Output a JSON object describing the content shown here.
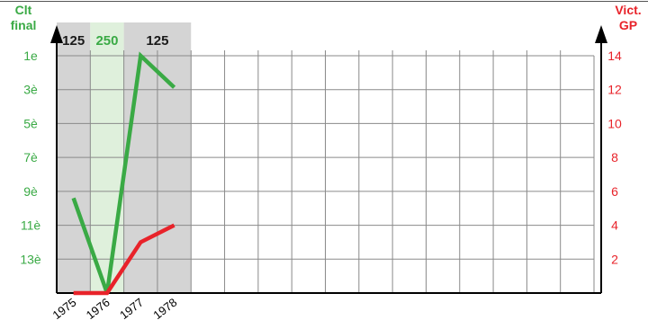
{
  "chart_data": {
    "type": "line",
    "left_axis_title": [
      "Clt",
      "final"
    ],
    "right_axis_title": [
      "Vict.",
      "GP"
    ],
    "left_ticks": [
      "1e",
      "3è",
      "5è",
      "7è",
      "9è",
      "11è",
      "13è"
    ],
    "right_ticks": [
      "14",
      "12",
      "10",
      "8",
      "6",
      "4",
      "2"
    ],
    "x_ticks": [
      "1975",
      "1976",
      "1977",
      "1978"
    ],
    "x_range": [
      1974.5,
      1990.5
    ],
    "left_range": [
      16,
      0
    ],
    "right_range": [
      0,
      14
    ],
    "bands": [
      {
        "label": "125",
        "from": 1974.5,
        "to": 1975.5,
        "color": "#d4d4d4",
        "text_color": "#1a1a1a"
      },
      {
        "label": "250",
        "from": 1975.5,
        "to": 1976.5,
        "color": "#dff0dc",
        "text_color": "#3aaa45"
      },
      {
        "label": "125",
        "from": 1976.5,
        "to": 1978.5,
        "color": "#d4d4d4",
        "text_color": "#1a1a1a"
      }
    ],
    "series": [
      {
        "axis": "left",
        "color": "#3aaa45",
        "points": [
          [
            1975,
            10
          ],
          [
            1976,
            16
          ],
          [
            1977,
            1
          ],
          [
            1978,
            3
          ]
        ]
      },
      {
        "axis": "right",
        "color": "#e8232a",
        "points": [
          [
            1975,
            0
          ],
          [
            1976,
            0
          ],
          [
            1977,
            3
          ],
          [
            1978,
            4
          ]
        ]
      }
    ],
    "grid": true,
    "left_axis_color": "#3aaa45",
    "right_axis_color": "#e8232a"
  }
}
